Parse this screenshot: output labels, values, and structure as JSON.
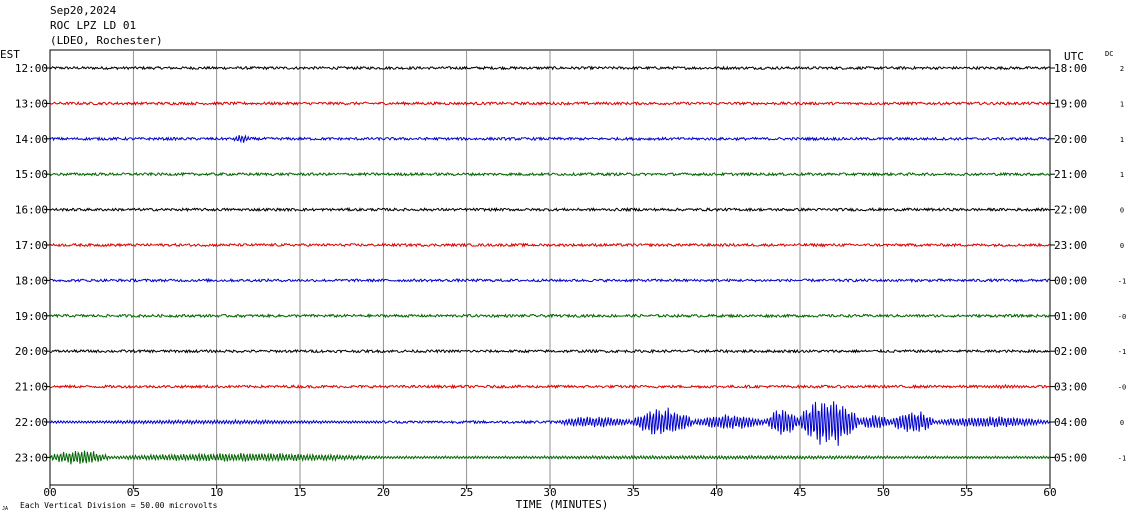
{
  "header": {
    "date": "Sep20,2024",
    "station": "ROC LPZ LD 01",
    "network": "(LDEO, Rochester)"
  },
  "left_timezone": "EST",
  "right_timezone": "UTC",
  "dc_label": "DC",
  "footer": {
    "marker": "JA",
    "scale": "Each Vertical Division =   50.00 microvolts"
  },
  "chart_data": {
    "type": "line",
    "title": "",
    "xlabel": "TIME (MINUTES)",
    "x_ticks": [
      "00",
      "05",
      "10",
      "15",
      "20",
      "25",
      "30",
      "35",
      "40",
      "45",
      "50",
      "55",
      "60"
    ],
    "xlim": [
      0,
      60
    ],
    "grid": true,
    "trace_colors": [
      "#000000",
      "#dd0000",
      "#0000cc",
      "#006400"
    ],
    "rows": [
      {
        "est": "12:00",
        "utc": "18:00",
        "dc": "2",
        "color": "#000000",
        "events": []
      },
      {
        "est": "13:00",
        "utc": "19:00",
        "dc": "1",
        "color": "#dd0000",
        "events": []
      },
      {
        "est": "14:00",
        "utc": "20:00",
        "dc": "1",
        "color": "#0000cc",
        "events": [
          {
            "start": 11.0,
            "end": 12.0,
            "amp": 0.7
          }
        ]
      },
      {
        "est": "15:00",
        "utc": "21:00",
        "dc": "1",
        "color": "#006400",
        "events": []
      },
      {
        "est": "16:00",
        "utc": "22:00",
        "dc": "0",
        "color": "#000000",
        "events": []
      },
      {
        "est": "17:00",
        "utc": "23:00",
        "dc": "0",
        "color": "#dd0000",
        "events": []
      },
      {
        "est": "18:00",
        "utc": "00:00",
        "dc": "-1",
        "color": "#0000cc",
        "events": []
      },
      {
        "est": "19:00",
        "utc": "01:00",
        "dc": "-0",
        "color": "#006400",
        "events": []
      },
      {
        "est": "20:00",
        "utc": "02:00",
        "dc": "-1",
        "color": "#000000",
        "events": []
      },
      {
        "est": "21:00",
        "utc": "03:00",
        "dc": "-0",
        "color": "#dd0000",
        "events": [
          {
            "start": 56.0,
            "end": 58.5,
            "amp": 0.3
          }
        ]
      },
      {
        "est": "22:00",
        "utc": "04:00",
        "dc": "0",
        "color": "#0000cc",
        "events": [
          {
            "start": 0.0,
            "end": 20.0,
            "amp": 0.35
          },
          {
            "start": 30.5,
            "end": 35.0,
            "amp": 1.0
          },
          {
            "start": 35.0,
            "end": 38.5,
            "amp": 2.6
          },
          {
            "start": 38.5,
            "end": 43.0,
            "amp": 1.3
          },
          {
            "start": 43.0,
            "end": 45.0,
            "amp": 2.4
          },
          {
            "start": 45.0,
            "end": 48.5,
            "amp": 4.4
          },
          {
            "start": 48.5,
            "end": 50.5,
            "amp": 1.4
          },
          {
            "start": 50.5,
            "end": 53.0,
            "amp": 2.1
          },
          {
            "start": 53.0,
            "end": 60.0,
            "amp": 1.0
          }
        ]
      },
      {
        "est": "23:00",
        "utc": "05:00",
        "dc": "-1",
        "color": "#006400",
        "events": [
          {
            "start": 0.0,
            "end": 3.5,
            "amp": 1.3
          },
          {
            "start": 3.5,
            "end": 20.0,
            "amp": 0.75
          },
          {
            "start": 20.0,
            "end": 60.0,
            "amp": 0.3
          }
        ]
      }
    ]
  }
}
